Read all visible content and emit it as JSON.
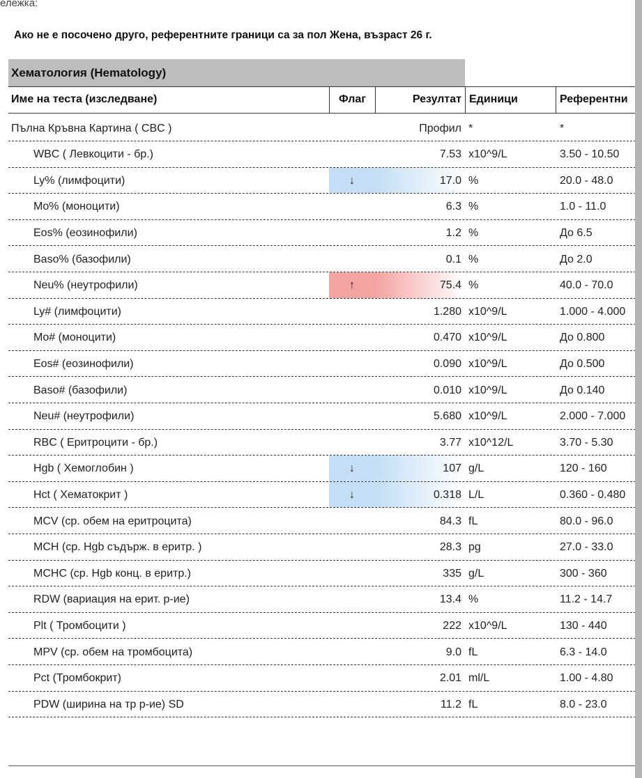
{
  "note_fragment": "ележка:",
  "subtitle": "Ако не е посочено друго, референтните граници са за пол Жена, възраст 26 г.",
  "section": "Хематология (Hematology)",
  "highlight_colors": {
    "low": "#c4def5",
    "high": "#f4a3a3"
  },
  "table": {
    "columns": [
      "Име на теста (изследване)",
      "Флаг",
      "Резултат",
      "Единици",
      "Референтни"
    ],
    "profile": {
      "name": "Пълна Кръвна Картина ( CBC )",
      "result": "Профил",
      "units": "*",
      "reference": "*"
    },
    "rows": [
      {
        "name": "WBC ( Левкоцити - бр.)",
        "flag": null,
        "result": "7.53",
        "units": "x10^9/L",
        "reference": "3.50 - 10.50"
      },
      {
        "name": "Ly% (лимфоцити)",
        "flag": "↓",
        "flag_level": "low",
        "result": "17.0",
        "units": "%",
        "reference": "20.0 - 48.0"
      },
      {
        "name": "Mo% (моноцити)",
        "flag": null,
        "result": "6.3",
        "units": "%",
        "reference": "1.0 - 11.0"
      },
      {
        "name": "Eos% (еозинофили)",
        "flag": null,
        "result": "1.2",
        "units": "%",
        "reference": "До 6.5"
      },
      {
        "name": "Baso% (базофили)",
        "flag": null,
        "result": "0.1",
        "units": "%",
        "reference": "До 2.0"
      },
      {
        "name": "Neu% (неутрофили)",
        "flag": "↑",
        "flag_level": "high",
        "result": "75.4",
        "units": "%",
        "reference": "40.0 - 70.0"
      },
      {
        "name": "Ly# (лимфоцити)",
        "flag": null,
        "result": "1.280",
        "units": "x10^9/L",
        "reference": "1.000 - 4.000"
      },
      {
        "name": "Mo# (моноцити)",
        "flag": null,
        "result": "0.470",
        "units": "x10^9/L",
        "reference": "До 0.800"
      },
      {
        "name": "Eos# (еозинофили)",
        "flag": null,
        "result": "0.090",
        "units": "x10^9/L",
        "reference": "До 0.500"
      },
      {
        "name": "Baso# (базофили)",
        "flag": null,
        "result": "0.010",
        "units": "x10^9/L",
        "reference": "До 0.140"
      },
      {
        "name": "Neu# (неутрофили)",
        "flag": null,
        "result": "5.680",
        "units": "x10^9/L",
        "reference": "2.000 - 7.000"
      },
      {
        "name": "RBC ( Еритроцити - бр.)",
        "flag": null,
        "result": "3.77",
        "units": "x10^12/L",
        "reference": "3.70 - 5.30"
      },
      {
        "name": "Hgb ( Хемоглобин )",
        "flag": "↓",
        "flag_level": "low",
        "result": "107",
        "units": "g/L",
        "reference": "120 - 160"
      },
      {
        "name": "Hct ( Хематокрит )",
        "flag": "↓",
        "flag_level": "low",
        "result": "0.318",
        "units": "L/L",
        "reference": "0.360 - 0.480"
      },
      {
        "name": "MCV (ср. обем на еритроцита)",
        "flag": null,
        "result": "84.3",
        "units": "fL",
        "reference": "80.0 - 96.0"
      },
      {
        "name": "MCH (ср. Hgb съдърж. в еритр. )",
        "flag": null,
        "result": "28.3",
        "units": "pg",
        "reference": "27.0 - 33.0"
      },
      {
        "name": "MCHC (ср. Hgb конц. в еритр.)",
        "flag": null,
        "result": "335",
        "units": "g/L",
        "reference": "300 - 360"
      },
      {
        "name": "RDW (вариация на ерит. р-ие)",
        "flag": null,
        "result": "13.4",
        "units": "%",
        "reference": "11.2 - 14.7"
      },
      {
        "name": "Plt ( Тромбоцити )",
        "flag": null,
        "result": "222",
        "units": "x10^9/L",
        "reference": "130 - 440"
      },
      {
        "name": "MPV (ср. обем на тромбоцита)",
        "flag": null,
        "result": "9.0",
        "units": "fL",
        "reference": "6.3 - 14.0"
      },
      {
        "name": "Pct (Тромбокрит)",
        "flag": null,
        "result": "2.01",
        "units": "ml/L",
        "reference": "1.00 - 4.80"
      },
      {
        "name": "PDW (ширина на тр р-ие) SD",
        "flag": null,
        "result": "11.2",
        "units": "fL",
        "reference": "8.0 - 23.0"
      }
    ]
  }
}
